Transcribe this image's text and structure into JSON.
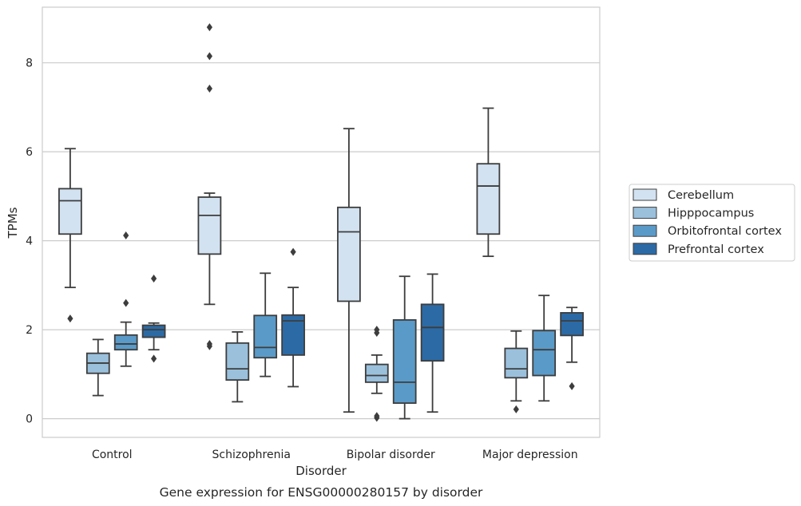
{
  "chart_data": {
    "type": "box",
    "xlabel": "Disorder",
    "ylabel": "TPMs",
    "caption": "Gene expression for ENSG00000280157 by disorder",
    "categories": [
      "Control",
      "Schizophrenia",
      "Bipolar disorder",
      "Major depression"
    ],
    "ylim": [
      -0.42,
      9.25
    ],
    "yticks": [
      0,
      2,
      4,
      6,
      8
    ],
    "grid": "horizontal",
    "legend_position": "right",
    "series": [
      {
        "name": "Cerebellum",
        "color": "#d3e2f1",
        "boxes": [
          {
            "whislo": 2.95,
            "q1": 4.15,
            "med": 4.9,
            "q3": 5.17,
            "whishi": 6.07,
            "fliers": [
              2.25
            ]
          },
          {
            "whislo": 2.57,
            "q1": 3.7,
            "med": 4.57,
            "q3": 4.98,
            "whishi": 5.07,
            "fliers": [
              1.63,
              1.68,
              7.42,
              8.15,
              8.8
            ]
          },
          {
            "whislo": 0.15,
            "q1": 2.64,
            "med": 4.2,
            "q3": 4.75,
            "whishi": 6.52,
            "fliers": []
          },
          {
            "whislo": 3.65,
            "q1": 4.15,
            "med": 5.23,
            "q3": 5.73,
            "whishi": 6.98,
            "fliers": []
          }
        ]
      },
      {
        "name": "Hipppocampus",
        "color": "#9ac0dc",
        "boxes": [
          {
            "whislo": 0.52,
            "q1": 1.02,
            "med": 1.25,
            "q3": 1.47,
            "whishi": 1.78,
            "fliers": []
          },
          {
            "whislo": 0.38,
            "q1": 0.87,
            "med": 1.12,
            "q3": 1.7,
            "whishi": 1.95,
            "fliers": []
          },
          {
            "whislo": 0.57,
            "q1": 0.82,
            "med": 0.97,
            "q3": 1.22,
            "whishi": 1.43,
            "fliers": [
              0.02,
              0.06,
              1.93,
              2.0
            ]
          },
          {
            "whislo": 0.4,
            "q1": 0.92,
            "med": 1.12,
            "q3": 1.58,
            "whishi": 1.97,
            "fliers": [
              0.21
            ]
          }
        ]
      },
      {
        "name": "Orbitofrontal cortex",
        "color": "#5a9ac8",
        "boxes": [
          {
            "whislo": 1.18,
            "q1": 1.55,
            "med": 1.68,
            "q3": 1.88,
            "whishi": 2.17,
            "fliers": [
              2.6,
              4.12
            ]
          },
          {
            "whislo": 0.95,
            "q1": 1.37,
            "med": 1.6,
            "q3": 2.32,
            "whishi": 3.27,
            "fliers": []
          },
          {
            "whislo": 0.0,
            "q1": 0.35,
            "med": 0.82,
            "q3": 2.22,
            "whishi": 3.2,
            "fliers": []
          },
          {
            "whislo": 0.4,
            "q1": 0.97,
            "med": 1.55,
            "q3": 1.98,
            "whishi": 2.77,
            "fliers": []
          }
        ]
      },
      {
        "name": "Prefrontal cortex",
        "color": "#2c6aa5",
        "boxes": [
          {
            "whislo": 1.55,
            "q1": 1.83,
            "med": 2.0,
            "q3": 2.1,
            "whishi": 2.15,
            "fliers": [
              1.35,
              3.15
            ]
          },
          {
            "whislo": 0.72,
            "q1": 1.43,
            "med": 2.2,
            "q3": 2.33,
            "whishi": 2.95,
            "fliers": [
              3.75
            ]
          },
          {
            "whislo": 0.15,
            "q1": 1.3,
            "med": 2.05,
            "q3": 2.57,
            "whishi": 3.25,
            "fliers": []
          },
          {
            "whislo": 1.27,
            "q1": 1.87,
            "med": 2.2,
            "q3": 2.38,
            "whishi": 2.5,
            "fliers": [
              0.73
            ]
          }
        ]
      }
    ]
  }
}
